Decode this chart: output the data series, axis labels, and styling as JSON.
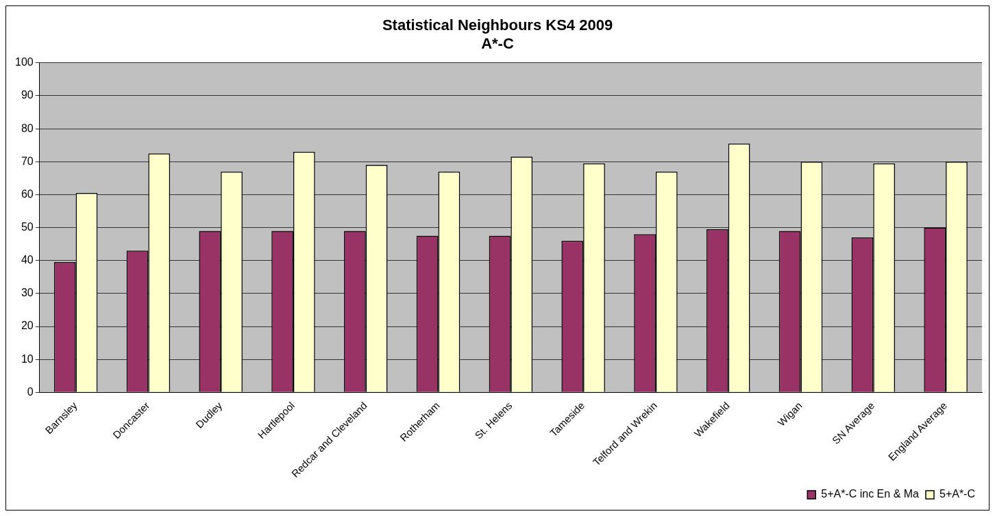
{
  "chart_data": {
    "type": "bar",
    "title": [
      "Statistical Neighbours KS4 2009",
      "A*-C"
    ],
    "categories": [
      "Barnsley",
      "Doncaster",
      "Dudley",
      "Hartlepool",
      "Redcar and Cleveland",
      "Rotherham",
      "St. Helens",
      "Tameside",
      "Telford and Wrekin",
      "Wakefield",
      "Wigan",
      "SN Average",
      "England Average"
    ],
    "series": [
      {
        "name": "5+A*-C inc En & Ma",
        "color": "#993366",
        "values": [
          39.5,
          43,
          49,
          49,
          49,
          47.5,
          47.5,
          46,
          48,
          49.5,
          49,
          47,
          50
        ]
      },
      {
        "name": "5+A*-C",
        "color": "#ffffcc",
        "values": [
          60.5,
          72.5,
          67,
          73,
          69,
          67,
          71.5,
          69.5,
          67,
          75.5,
          70,
          69.5,
          70
        ]
      }
    ],
    "ylim": [
      0,
      100
    ],
    "yticks": [
      0,
      10,
      20,
      30,
      40,
      50,
      60,
      70,
      80,
      90,
      100
    ],
    "grid": "y",
    "legend": "bottom right"
  }
}
